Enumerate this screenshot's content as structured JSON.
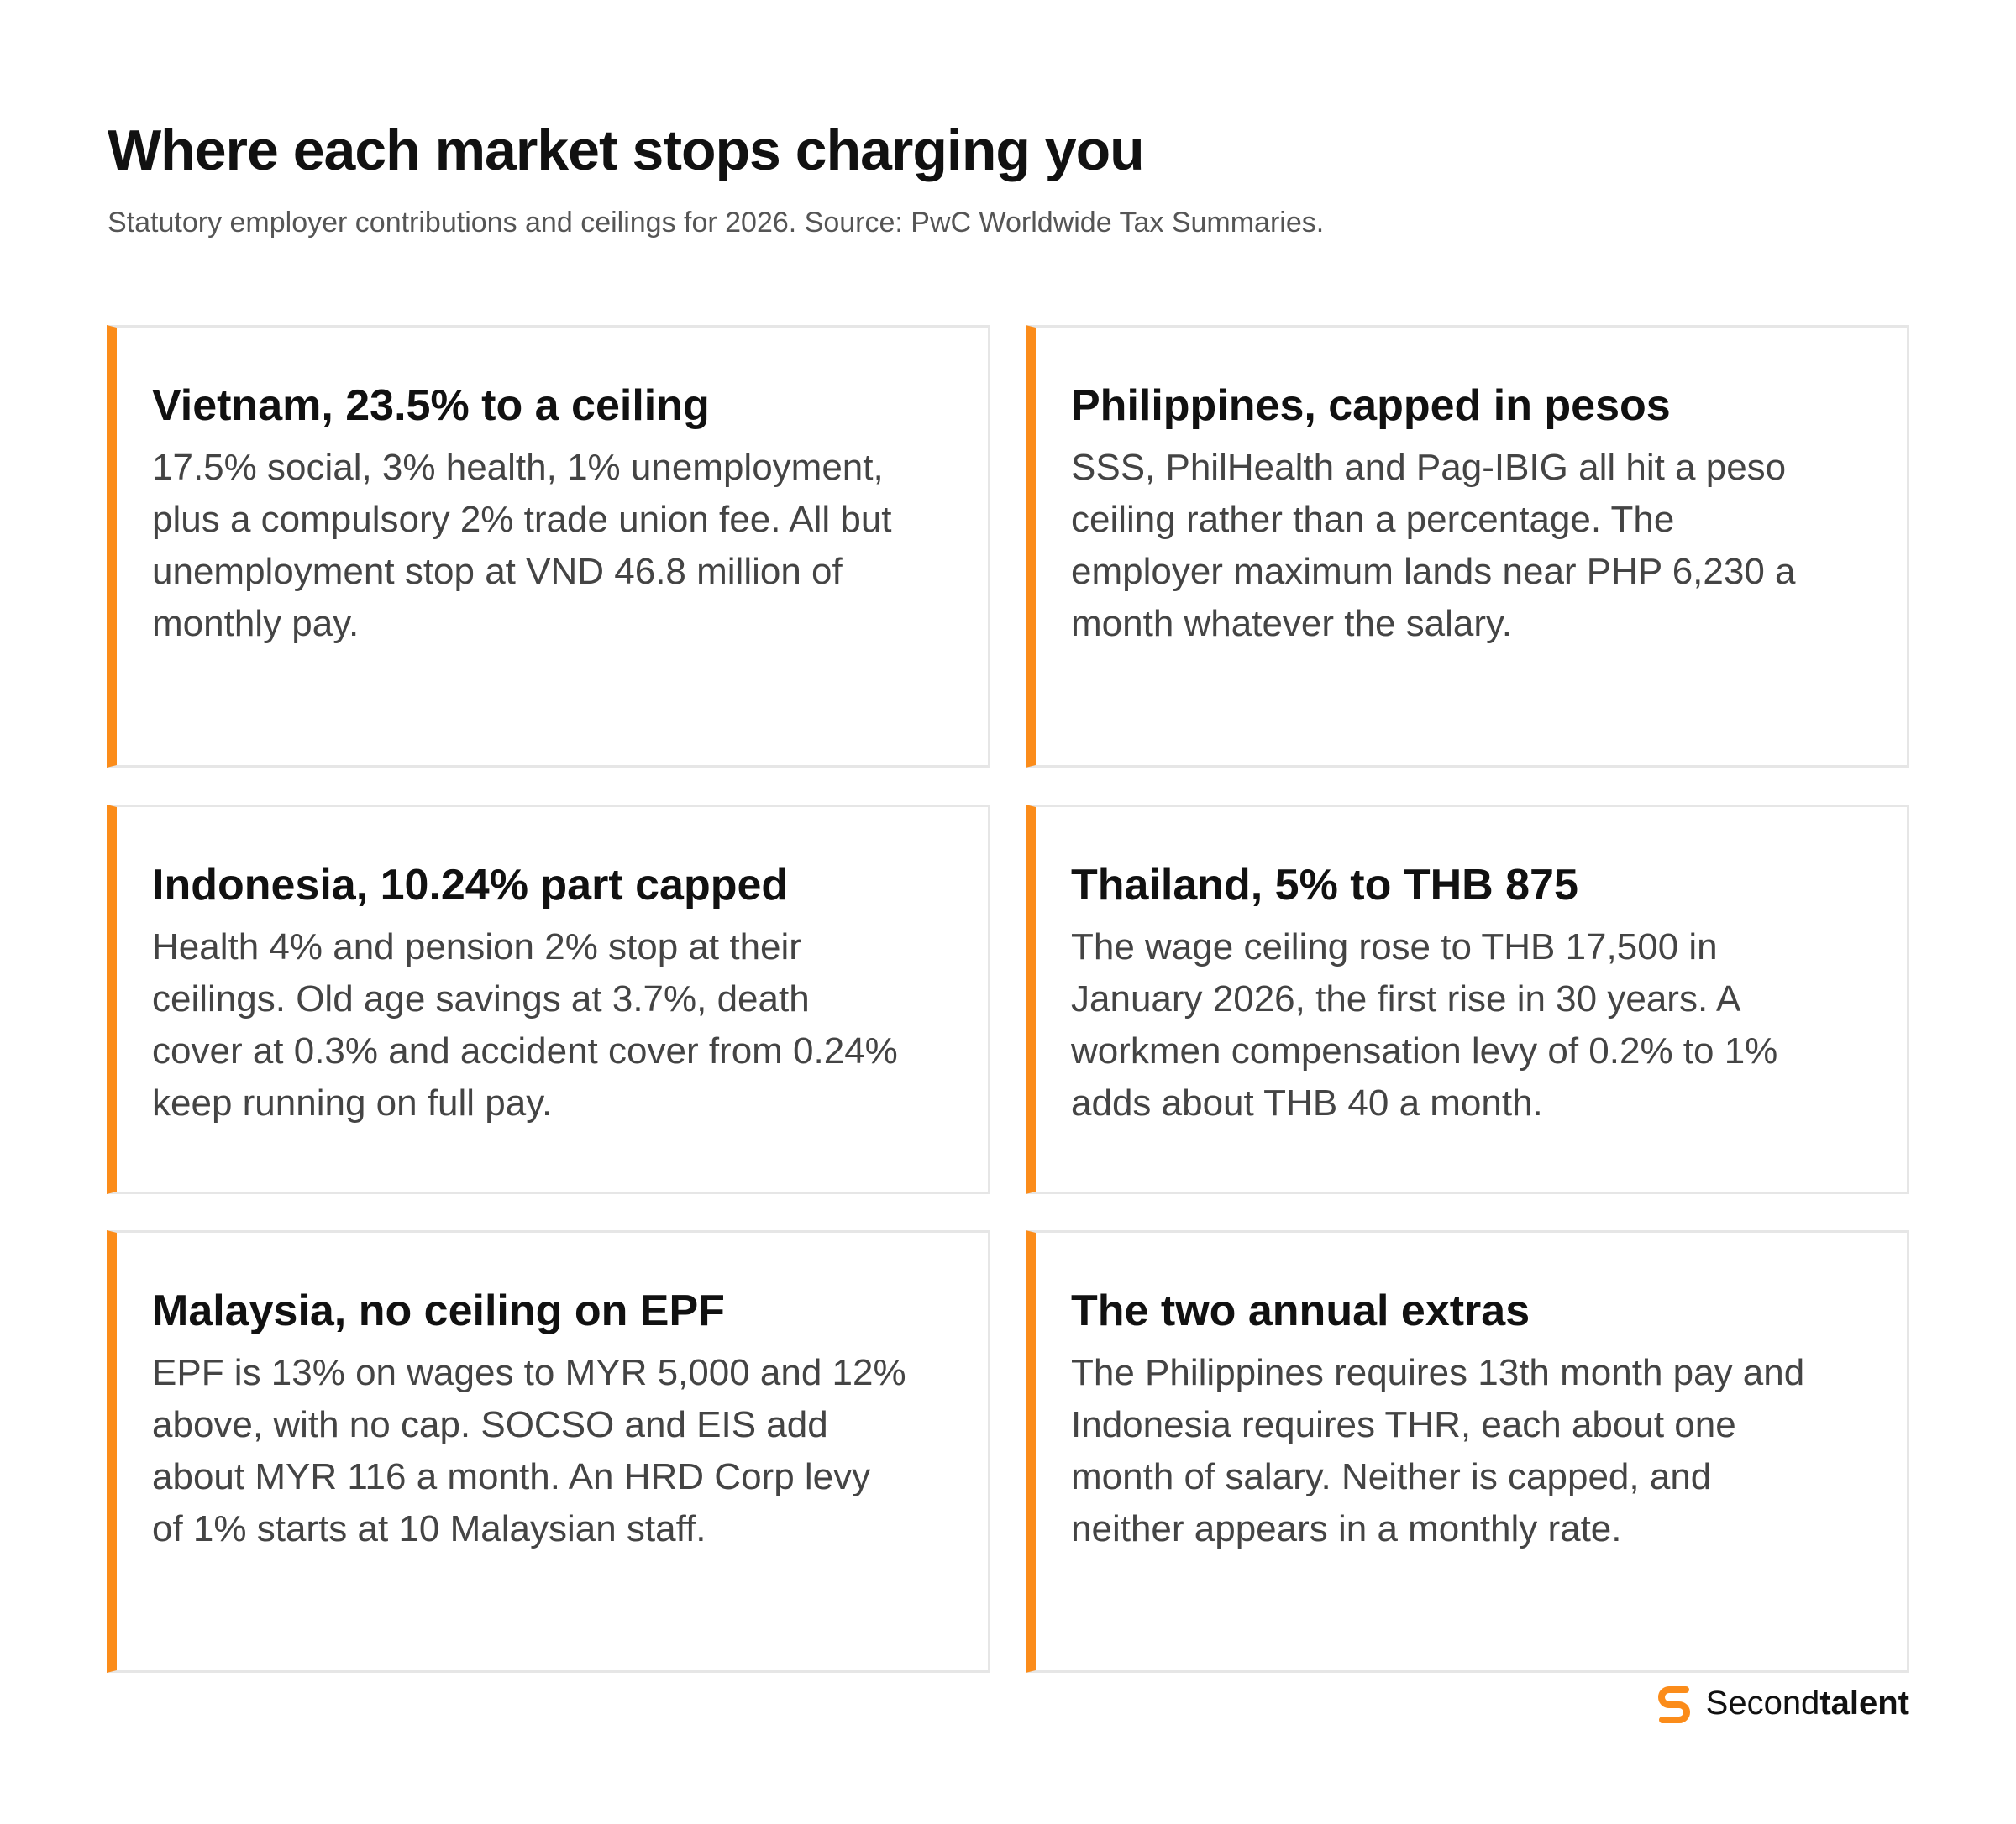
{
  "header": {
    "title": "Where each market stops charging you",
    "subtitle": "Statutory employer contributions and ceilings for 2026. Source: PwC Worldwide Tax Summaries."
  },
  "cards": [
    {
      "title": "Vietnam, 23.5% to a ceiling",
      "body": "17.5% social, 3% health, 1% unemployment, plus a compulsory 2% trade union fee. All but unemployment stop at VND 46.8 million of monthly pay."
    },
    {
      "title": "Philippines, capped in pesos",
      "body": "SSS, PhilHealth and Pag-IBIG all hit a peso ceiling rather than a percentage. The employer maximum lands near PHP 6,230 a month whatever the salary."
    },
    {
      "title": "Indonesia, 10.24% part capped",
      "body": "Health 4% and pension 2% stop at their ceilings. Old age savings at 3.7%, death cover at 0.3% and accident cover from 0.24% keep running on full pay."
    },
    {
      "title": "Thailand, 5% to THB 875",
      "body": "The wage ceiling rose to THB 17,500 in January 2026, the first rise in 30 years. A workmen compensation levy of 0.2% to 1% adds about THB 40 a month."
    },
    {
      "title": "Malaysia, no ceiling on EPF",
      "body": "EPF is 13% on wages to MYR 5,000 and 12% above, with no cap. SOCSO and EIS add about MYR 116 a month. An HRD Corp levy of 1% starts at 10 Malaysian staff."
    },
    {
      "title": "The two annual extras",
      "body": "The Philippines requires 13th month pay and Indonesia requires THR, each about one month of salary. Neither is capped, and neither appears in a monthly rate."
    }
  ],
  "brand": {
    "first": "Second",
    "second": "talent"
  }
}
